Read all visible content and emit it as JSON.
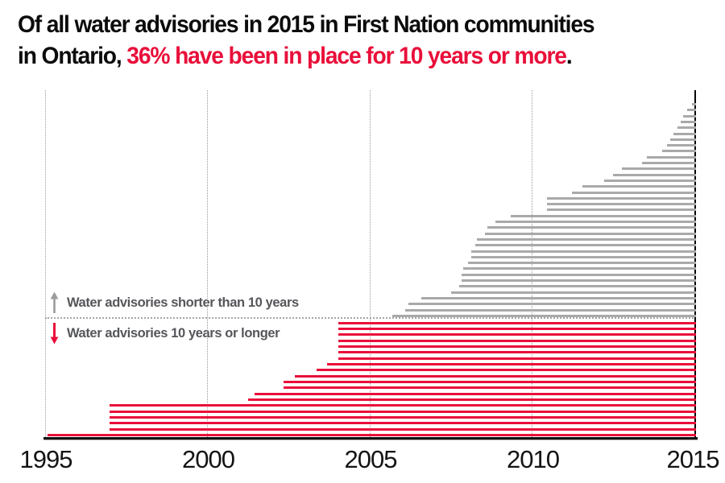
{
  "title": {
    "line1": "Of all water advisories in 2015 in First Nation communities",
    "line2_prefix": "in Ontario, ",
    "line2_highlight": "36% have been in place for 10 years or more",
    "line2_suffix": "."
  },
  "legend": {
    "above_separator": "Water advisories shorter than 10 years",
    "below_separator": "Water advisories 10 years or longer"
  },
  "colors": {
    "highlight_red": "#e90f3a",
    "bar_gray": "#a9a9a9",
    "bar_red": "#e90f3a",
    "legend_text": "#55565a",
    "grid_dotted": "#9b9b9b",
    "axis_black": "#111111"
  },
  "chart_data": {
    "type": "bar",
    "orientation": "horizontal-timeline",
    "title": "Of all water advisories in 2015 in First Nation communities in Ontario, 36% have been in place for 10 years or more.",
    "x_axis": {
      "range": [
        1995,
        2015
      ],
      "ticks": [
        {
          "label": "1995",
          "year": 1995
        },
        {
          "label": "2000",
          "year": 2000
        },
        {
          "label": "2005",
          "year": 2005
        },
        {
          "label": "2010",
          "year": 2010
        },
        {
          "label": "2015",
          "year": 2015
        }
      ],
      "grid": "dotted-vertical"
    },
    "end_year": 2015,
    "legend_position": "inside-left",
    "series": [
      {
        "name": "Water advisories shorter than 10 years",
        "color": "#a9a9a9",
        "count": 37,
        "start_years": [
          2014.93,
          2014.78,
          2014.65,
          2014.58,
          2014.48,
          2014.36,
          2014.26,
          2014.16,
          2014.01,
          2013.54,
          2013.39,
          2012.77,
          2012.49,
          2012.22,
          2011.55,
          2011.23,
          2010.46,
          2010.46,
          2010.46,
          2009.34,
          2008.87,
          2008.62,
          2008.55,
          2008.3,
          2008.25,
          2008.13,
          2008.13,
          2008.03,
          2007.88,
          2007.83,
          2007.83,
          2007.75,
          2007.51,
          2006.59,
          2006.19,
          2006.09,
          2005.7
        ]
      },
      {
        "name": "Water advisories 10 years or longer",
        "color": "#e90f3a",
        "count": 20,
        "start_years": [
          2004.03,
          2004.03,
          2004.03,
          2004.03,
          2004.03,
          2004.03,
          2004.03,
          2003.69,
          2003.36,
          2002.69,
          2002.35,
          2002.35,
          2001.45,
          2001.25,
          1996.99,
          1996.99,
          1996.99,
          1996.99,
          1996.99,
          1995.07
        ]
      }
    ]
  }
}
